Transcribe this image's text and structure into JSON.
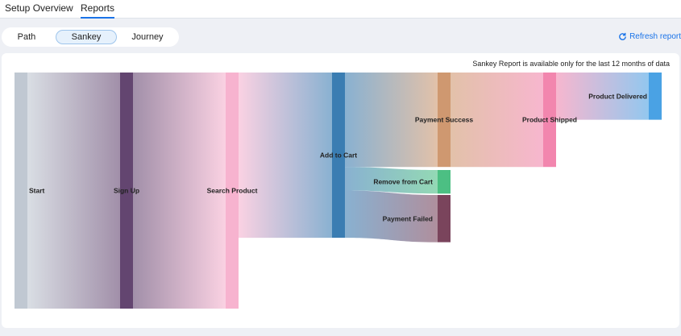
{
  "tabs": [
    {
      "label": "Setup Overview",
      "active": false
    },
    {
      "label": "Reports",
      "active": true
    }
  ],
  "view_toggle": [
    {
      "label": "Path",
      "active": false
    },
    {
      "label": "Sankey",
      "active": true
    },
    {
      "label": "Journey",
      "active": false
    }
  ],
  "refresh_label": "Refresh report",
  "note": "Sankey Report is available only for the last 12 months of data",
  "chart_data": {
    "type": "sankey",
    "nodes": [
      {
        "id": "start",
        "label": "Start",
        "stage": 0,
        "color": "#c0c8d2"
      },
      {
        "id": "signup",
        "label": "Sign Up",
        "stage": 1,
        "color": "#634570"
      },
      {
        "id": "search",
        "label": "Search Product",
        "stage": 2,
        "color": "#f7b3cf"
      },
      {
        "id": "cart",
        "label": "Add to Cart",
        "stage": 3,
        "color": "#3a7db2"
      },
      {
        "id": "success",
        "label": "Payment Success",
        "stage": 4,
        "color": "#cf9870"
      },
      {
        "id": "remove",
        "label": "Remove from Cart",
        "stage": 4,
        "color": "#4cbf83"
      },
      {
        "id": "failed",
        "label": "Payment Failed",
        "stage": 4,
        "color": "#7a445c"
      },
      {
        "id": "shipped",
        "label": "Product Shipped",
        "stage": 5,
        "color": "#f286ae"
      },
      {
        "id": "delivered",
        "label": "Product Delivered",
        "stage": 6,
        "color": "#4aa2e4"
      }
    ],
    "links": [
      {
        "source": "start",
        "target": "signup",
        "value": 100
      },
      {
        "source": "signup",
        "target": "search",
        "value": 100
      },
      {
        "source": "search",
        "target": "cart",
        "value": 70
      },
      {
        "source": "cart",
        "target": "success",
        "value": 40
      },
      {
        "source": "cart",
        "target": "remove",
        "value": 10
      },
      {
        "source": "cart",
        "target": "failed",
        "value": 20
      },
      {
        "source": "success",
        "target": "shipped",
        "value": 40
      },
      {
        "source": "shipped",
        "target": "delivered",
        "value": 20
      }
    ]
  }
}
